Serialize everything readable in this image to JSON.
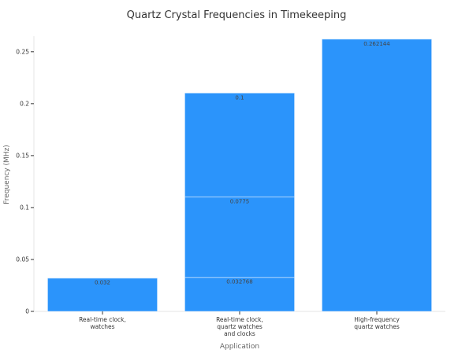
{
  "chart_data": {
    "type": "bar",
    "stacked": true,
    "title": "Quartz Crystal Frequencies in Timekeeping",
    "xlabel": "Application",
    "ylabel": "Frequency (MHz)",
    "ylim": [
      0,
      0.265
    ],
    "yticks": [
      0,
      0.05,
      0.1,
      0.15,
      0.2,
      0.25
    ],
    "ytick_labels": [
      "0",
      "0.05",
      "0.1",
      "0.15",
      "0.2",
      "0.25"
    ],
    "grid": false,
    "bar_color": "#2b94fb",
    "categories": [
      [
        "Real-time clock,",
        "watches"
      ],
      [
        "Real-time clock,",
        "quartz watches",
        "and clocks"
      ],
      [
        "High-frequency",
        "quartz watches"
      ]
    ],
    "stacks": [
      [
        {
          "value": 0.032,
          "label": "0.032"
        }
      ],
      [
        {
          "value": 0.032768,
          "label": "0.032768"
        },
        {
          "value": 0.0775,
          "label": "0.0775"
        },
        {
          "value": 0.1,
          "label": "0.1"
        }
      ],
      [
        {
          "value": 0.262144,
          "label": "0.262144"
        }
      ]
    ]
  }
}
